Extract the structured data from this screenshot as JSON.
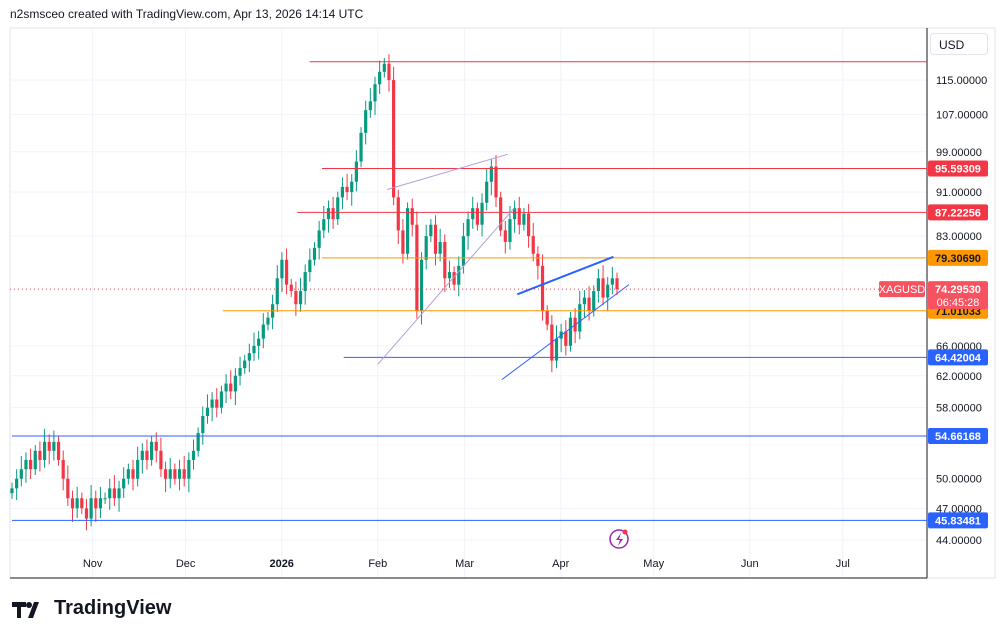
{
  "header": "n2smsceo created with TradingView.com, Apr 13, 2026 14:14 UTC",
  "brand": "TradingView",
  "currency": "USD",
  "chart_data": {
    "type": "candlestick",
    "symbol": "XAGUSD",
    "scale": "log",
    "last_price": "74.29530",
    "countdown": "06:45:28",
    "y_ticks": [
      115,
      107,
      99,
      91,
      83,
      66,
      62,
      58,
      50,
      47,
      44
    ],
    "x_ticks": [
      {
        "label": "Nov",
        "day": 26
      },
      {
        "label": "Dec",
        "day": 56
      },
      {
        "label": "2026",
        "day": 87
      },
      {
        "label": "Feb",
        "day": 118
      },
      {
        "label": "Mar",
        "day": 146
      },
      {
        "label": "Apr",
        "day": 177
      },
      {
        "label": "May",
        "day": 207
      },
      {
        "label": "Jun",
        "day": 238
      },
      {
        "label": "Jul",
        "day": 268
      }
    ],
    "levels": [
      {
        "price": 119.5,
        "color": "#f23645",
        "label": null,
        "startDay": 96
      },
      {
        "price": 95.59309,
        "color": "#f23645",
        "label": "95.59309",
        "startDay": 100
      },
      {
        "price": 87.22256,
        "color": "#f23645",
        "label": "87.22256",
        "startDay": 92
      },
      {
        "price": 79.3069,
        "color": "#ff9800",
        "label": "79.30690",
        "startDay": 100
      },
      {
        "price": 71.01033,
        "color": "#ff9800",
        "label": "71.01033",
        "startDay": 68
      },
      {
        "price": 64.42004,
        "color": "#2962ff",
        "label": "64.42004",
        "startDay": 107
      },
      {
        "price": 54.66168,
        "color": "#2962ff",
        "label": "54.66168",
        "startDay": 0
      },
      {
        "price": 45.83481,
        "color": "#2962ff",
        "label": "45.83481",
        "startDay": 0
      }
    ],
    "trendlines": [
      {
        "from": [
          118,
          63.5
        ],
        "to": [
          162,
          88
        ],
        "color": "#b39ddb",
        "width": 1
      },
      {
        "from": [
          121,
          91.5
        ],
        "to": [
          160,
          98.5
        ],
        "color": "#b39ddb",
        "width": 1
      },
      {
        "from": [
          163,
          73.5
        ],
        "to": [
          194,
          79.5
        ],
        "color": "#2962ff",
        "width": 2
      },
      {
        "from": [
          158,
          61.5
        ],
        "to": [
          199,
          75
        ],
        " color": "#2962ff",
        "color": "#2962ff",
        "width": 1
      }
    ],
    "closes": [
      49,
      50,
      51,
      52,
      51,
      53,
      52,
      54,
      53,
      54,
      52,
      50,
      48,
      47,
      48,
      47,
      46,
      48,
      47,
      48,
      48,
      49,
      48,
      49,
      50,
      51,
      50,
      52,
      53,
      52,
      54,
      53,
      51,
      50,
      51,
      50,
      51,
      50,
      52,
      53,
      55,
      57,
      58,
      59,
      58,
      60,
      61,
      60,
      62,
      63,
      64,
      65,
      66,
      67,
      69,
      70,
      72,
      76,
      79,
      75,
      74,
      72,
      74,
      77,
      79,
      81,
      84,
      86,
      88,
      86,
      90,
      92,
      91,
      93,
      97,
      103,
      108,
      110,
      114,
      117,
      119,
      115,
      90,
      84,
      80,
      88,
      85,
      71,
      79,
      83,
      85,
      80,
      82,
      76,
      77,
      75,
      78,
      83,
      86,
      88,
      85,
      89,
      93,
      96,
      90,
      84,
      82,
      86,
      88,
      85,
      87,
      83,
      80,
      78,
      71,
      69,
      64,
      67,
      68,
      66,
      70,
      68,
      72,
      73,
      71,
      74,
      76,
      73,
      75,
      76,
      74.2953
    ],
    "up_color": "#089981",
    "down_color": "#f23645"
  }
}
